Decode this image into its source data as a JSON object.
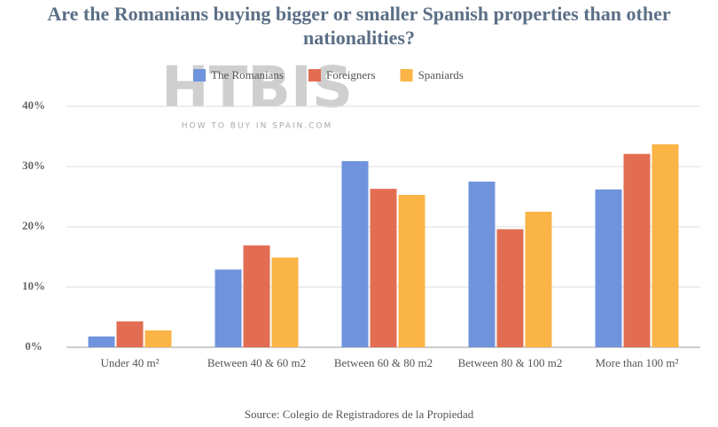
{
  "chart_data": {
    "type": "bar",
    "title": "Are the Romanians buying bigger or smaller Spanish properties than other nationalities?",
    "watermark": "HTBIS",
    "watermark_subtitle": "HOW TO BUY IN SPAIN.COM",
    "source": "Source: Colegio de Registradores de la Propiedad",
    "categories": [
      "Under 40 m²",
      "Between 40 & 60 m2",
      "Between 60 & 80 m2",
      "Between 80 & 100 m2",
      "More than 100 m²"
    ],
    "series": [
      {
        "name": "The Romanians",
        "color": "#6f93dc",
        "values": [
          1.8,
          12.9,
          30.9,
          27.5,
          26.2
        ]
      },
      {
        "name": "Foreigners",
        "color": "#e26d52",
        "values": [
          4.3,
          16.9,
          26.3,
          19.6,
          32.1
        ]
      },
      {
        "name": "Spaniards",
        "color": "#fbb446",
        "values": [
          2.8,
          14.9,
          25.3,
          22.5,
          33.7
        ]
      }
    ],
    "ylim": [
      0,
      40
    ],
    "yticks": [
      {
        "value": 0,
        "label": "0%"
      },
      {
        "value": 10,
        "label": "10%"
      },
      {
        "value": 20,
        "label": "20%"
      },
      {
        "value": 30,
        "label": "30%"
      },
      {
        "value": 40,
        "label": "40%"
      }
    ],
    "grid": true,
    "legend": "top"
  }
}
